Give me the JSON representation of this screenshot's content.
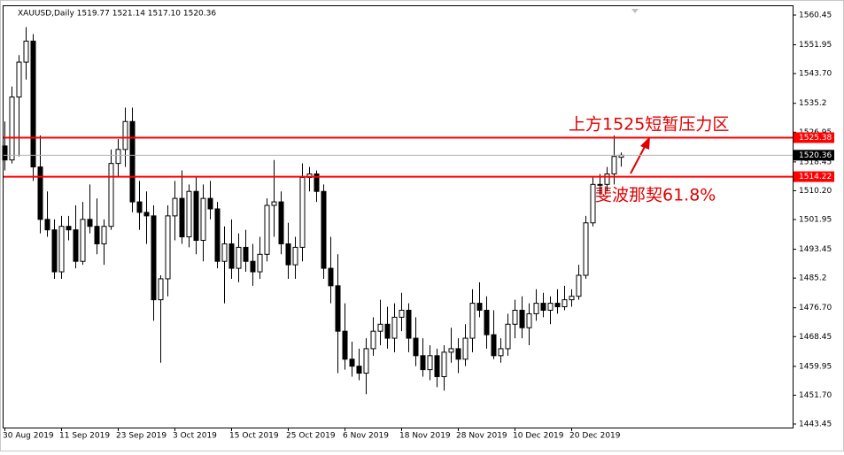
{
  "chart_data": {
    "type": "candlestick",
    "title": "XAUUSD,Daily  1519.77 1521.14 1517.10 1520.36",
    "categories": [
      "30 Aug 2019",
      null,
      null,
      null,
      null,
      null,
      null,
      null,
      "11 Sep 2019",
      null,
      null,
      null,
      null,
      null,
      null,
      null,
      "23 Sep 2019",
      null,
      null,
      null,
      null,
      null,
      null,
      null,
      "3 Oct 2019",
      null,
      null,
      null,
      null,
      null,
      null,
      null,
      "15 Oct 2019",
      null,
      null,
      null,
      null,
      null,
      null,
      null,
      "25 Oct 2019",
      null,
      null,
      null,
      null,
      null,
      null,
      null,
      "6 Nov 2019",
      null,
      null,
      null,
      null,
      null,
      null,
      null,
      "18 Nov 2019",
      null,
      null,
      null,
      null,
      null,
      null,
      null,
      "28 Nov 2019",
      null,
      null,
      null,
      null,
      null,
      null,
      null,
      "10 Dec 2019",
      null,
      null,
      null,
      null,
      null,
      null,
      null,
      "20 Dec 2019",
      null,
      null,
      null,
      null,
      null,
      null,
      null
    ],
    "open": [
      1523,
      1519,
      1537,
      1547,
      1553,
      1517,
      1502,
      1499,
      1487,
      1500,
      1499,
      1490,
      1502,
      1500,
      1495,
      1500,
      1518,
      1522,
      1530,
      1507,
      1504,
      1503,
      1479,
      1485,
      1503,
      1508,
      1497,
      1510,
      1496,
      1508,
      1505,
      1490,
      1495,
      1488,
      1494,
      1490,
      1487,
      1492,
      1506,
      1507,
      1495,
      1489,
      1494,
      1514,
      1515,
      1510,
      1488,
      1483,
      1470,
      1462,
      1460,
      1458,
      1465,
      1470,
      1472,
      1468,
      1474,
      1476,
      1468,
      1463,
      1459,
      1463,
      1457,
      1464,
      1465,
      1462,
      1468,
      1478,
      1476,
      1469,
      1463,
      1465,
      1472,
      1476,
      1471,
      1475,
      1478,
      1476,
      1478,
      1477,
      1479,
      1480,
      1486,
      1501,
      1512,
      1512,
      1515,
      1519.77
    ],
    "high": [
      1530,
      1540,
      1549,
      1557,
      1555,
      1526,
      1510,
      1502,
      1503,
      1503,
      1506,
      1507,
      1512,
      1508,
      1502,
      1522,
      1525,
      1534,
      1534,
      1513,
      1510,
      1506,
      1486,
      1506,
      1513,
      1516,
      1512,
      1514,
      1512,
      1513,
      1507,
      1500,
      1502,
      1498,
      1499,
      1495,
      1497,
      1508,
      1519,
      1510,
      1501,
      1497,
      1518,
      1517,
      1516,
      1512,
      1497,
      1492,
      1478,
      1467,
      1465,
      1468,
      1474,
      1479,
      1477,
      1478,
      1481,
      1478,
      1474,
      1468,
      1466,
      1465,
      1466,
      1471,
      1468,
      1472,
      1482,
      1484,
      1480,
      1476,
      1468,
      1475,
      1479,
      1480,
      1478,
      1482,
      1481,
      1480,
      1482,
      1483,
      1482,
      1489,
      1503,
      1514,
      1515,
      1517,
      1526,
      1521.14
    ],
    "low": [
      1516,
      1518,
      1520,
      1542,
      1513,
      1498,
      1497,
      1485,
      1485,
      1496,
      1488,
      1489,
      1498,
      1492,
      1489,
      1499,
      1514,
      1517,
      1504,
      1499,
      1495,
      1473,
      1461,
      1480,
      1496,
      1495,
      1494,
      1492,
      1490,
      1502,
      1488,
      1478,
      1485,
      1484,
      1487,
      1483,
      1485,
      1490,
      1497,
      1492,
      1485,
      1485,
      1490,
      1510,
      1507,
      1485,
      1478,
      1458,
      1459,
      1457,
      1456,
      1452,
      1463,
      1466,
      1465,
      1464,
      1470,
      1464,
      1460,
      1457,
      1456,
      1454,
      1453,
      1461,
      1458,
      1460,
      1464,
      1474,
      1465,
      1462,
      1461,
      1463,
      1468,
      1468,
      1466,
      1473,
      1474,
      1472,
      1475,
      1476,
      1477,
      1479,
      1485,
      1500,
      1509,
      1510,
      1512,
      1517.1
    ],
    "close": [
      1519,
      1537,
      1547,
      1553,
      1517,
      1502,
      1499,
      1487,
      1500,
      1499,
      1490,
      1502,
      1500,
      1495,
      1500,
      1518,
      1522,
      1530,
      1507,
      1504,
      1503,
      1479,
      1485,
      1503,
      1508,
      1497,
      1510,
      1496,
      1508,
      1505,
      1490,
      1495,
      1488,
      1494,
      1490,
      1487,
      1492,
      1506,
      1507,
      1495,
      1489,
      1494,
      1514,
      1515,
      1510,
      1488,
      1483,
      1470,
      1462,
      1460,
      1458,
      1465,
      1470,
      1472,
      1468,
      1474,
      1476,
      1468,
      1463,
      1459,
      1463,
      1457,
      1464,
      1465,
      1462,
      1468,
      1478,
      1476,
      1469,
      1463,
      1465,
      1472,
      1476,
      1471,
      1475,
      1478,
      1476,
      1478,
      1477,
      1479,
      1480,
      1486,
      1501,
      1512,
      1512,
      1515,
      1520,
      1520.36
    ],
    "ylim": [
      1442.44,
      1563.24
    ],
    "yticks": [
      1560.45,
      1551.95,
      {
        "value": 1543.7,
        "label": "1543.70"
      },
      1535.2,
      1526.95,
      1518.45,
      {
        "value": 1510.2,
        "label": "1510.20"
      },
      1501.95,
      1493.45,
      1485.2,
      {
        "value": 1476.7,
        "label": "1476.70"
      },
      1468.45,
      1459.95,
      {
        "value": 1451.7,
        "label": "1451.70"
      },
      1443.45
    ],
    "levels": [
      1525.38,
      1514.22
    ],
    "level_color": "#ff0000",
    "last_price": 1520.36,
    "annotations": [
      "上方1525短暂压力区",
      "斐波那契61.8%"
    ]
  }
}
